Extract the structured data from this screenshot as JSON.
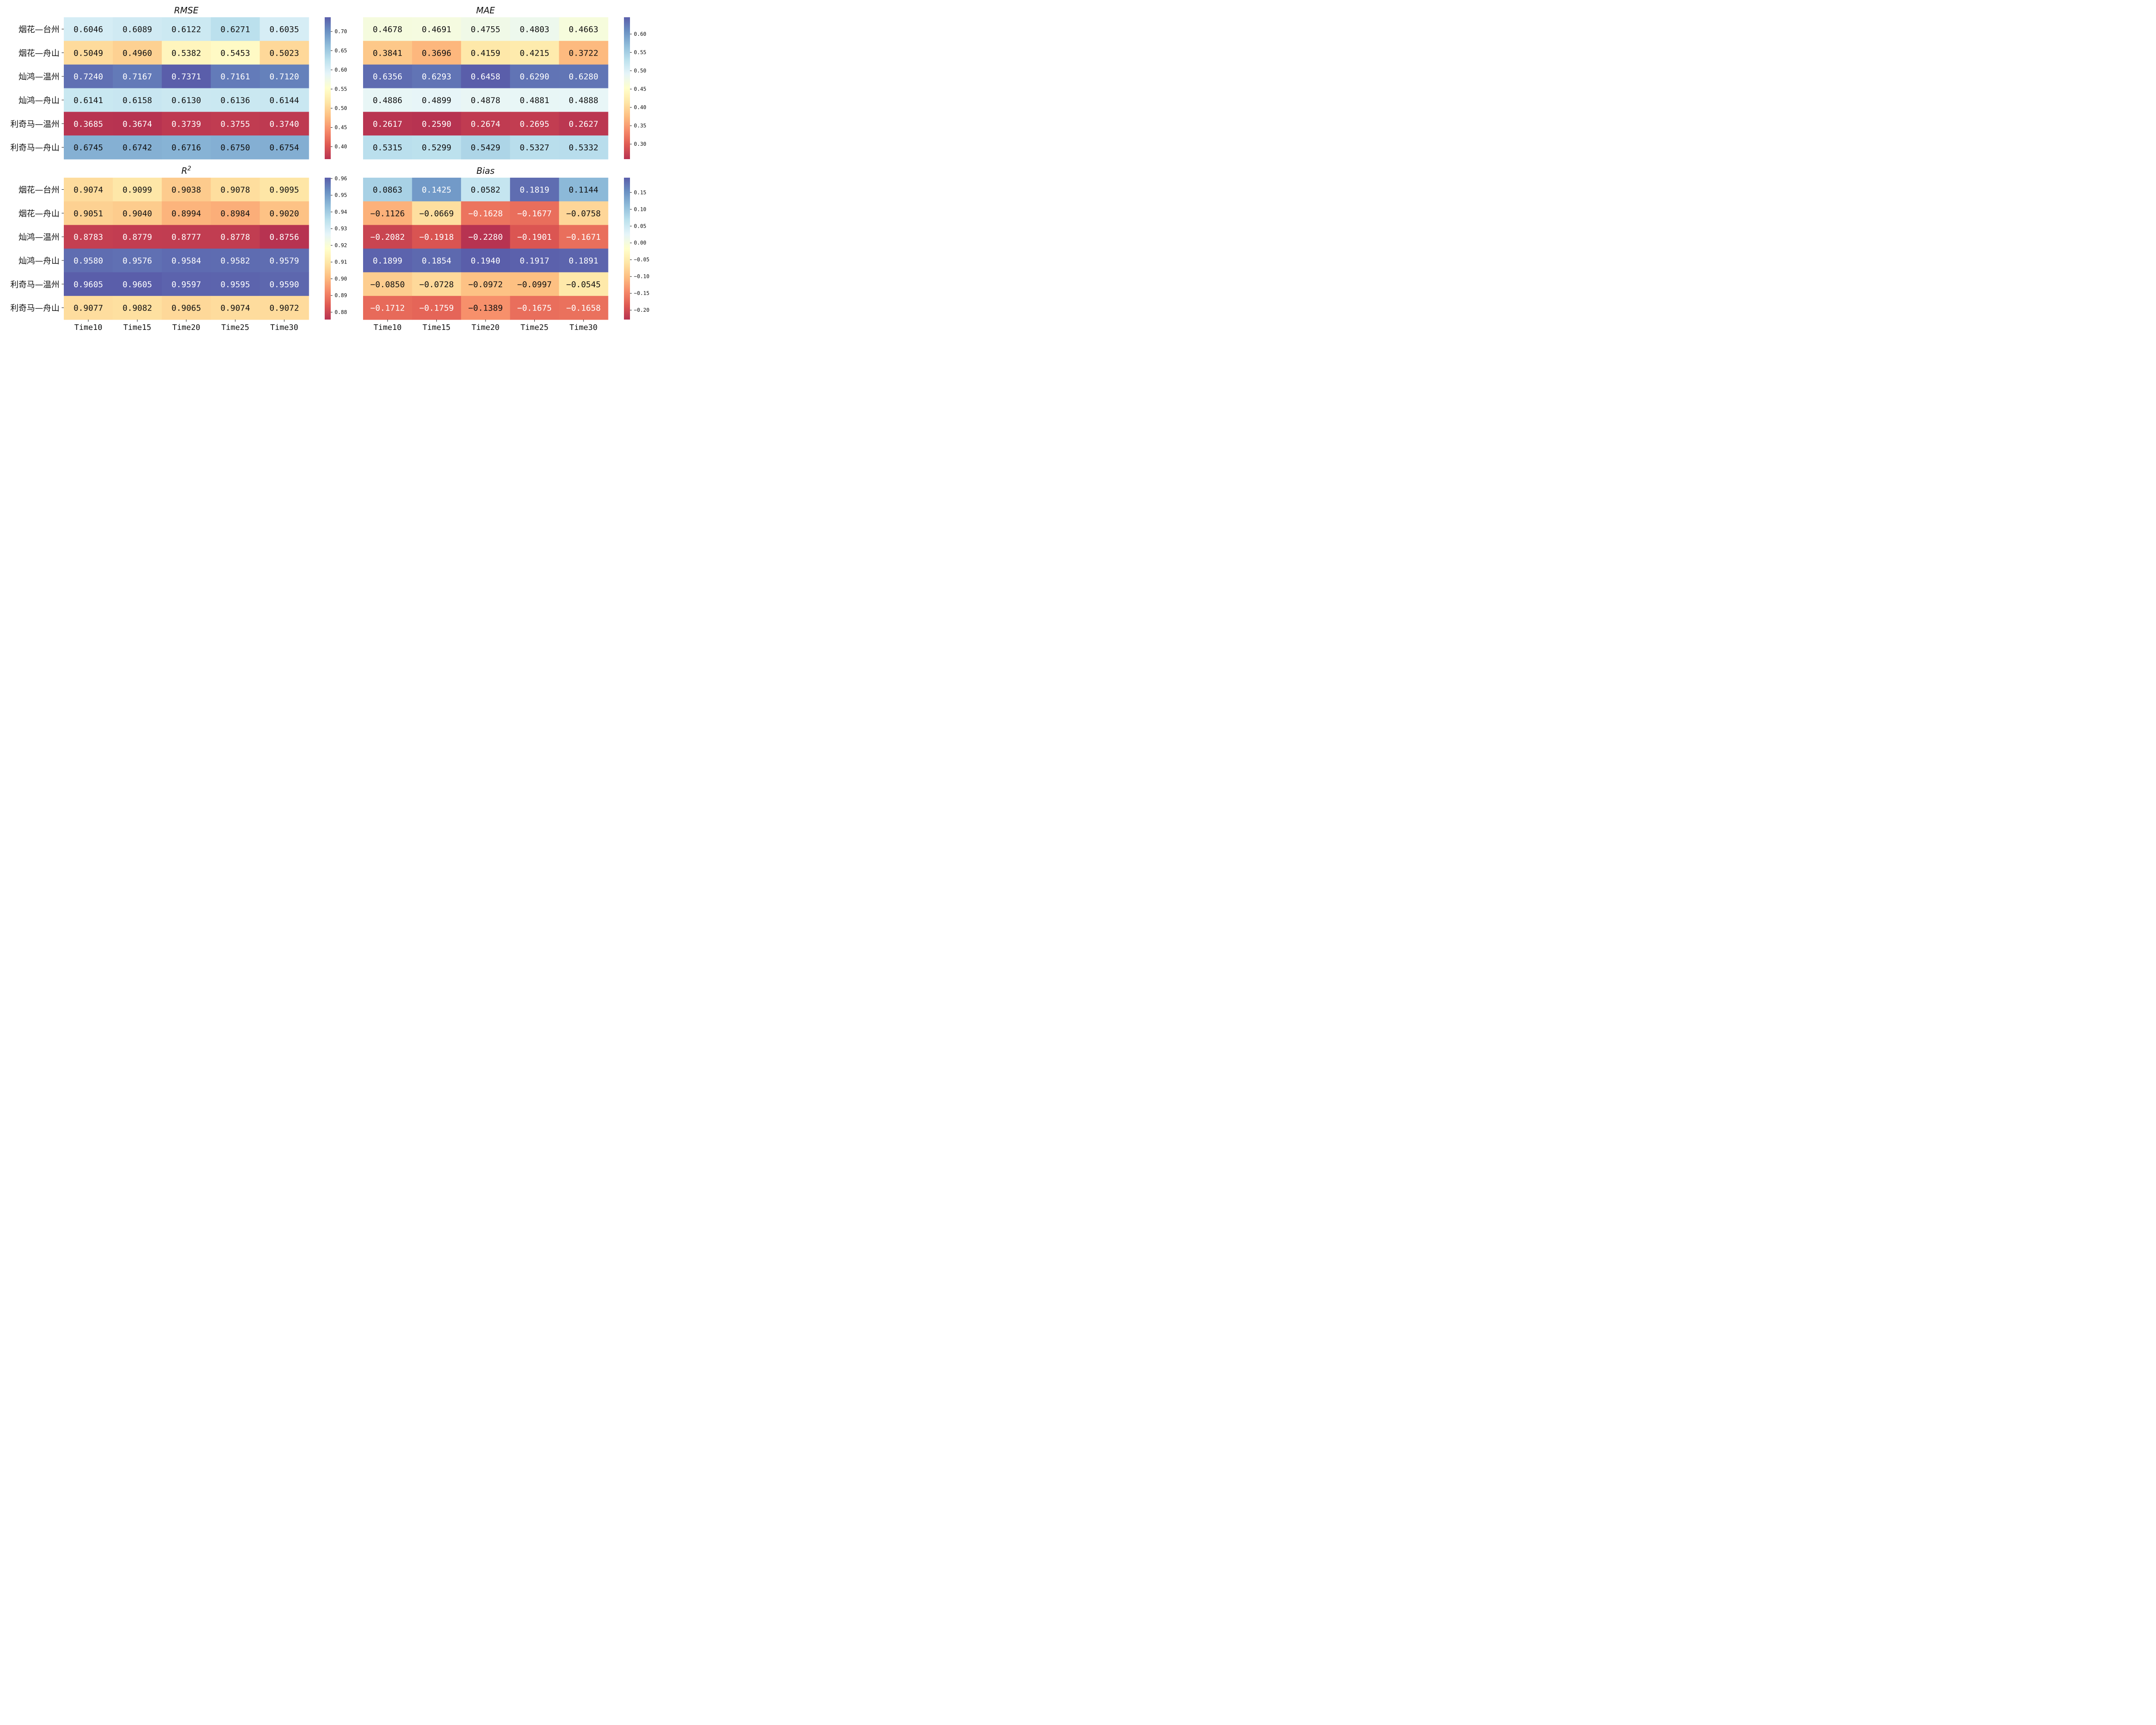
{
  "chart_data": [
    {
      "type": "heatmap",
      "title": "RMSE",
      "title_style": "italic",
      "rows": [
        "烟花—台州",
        "烟花—舟山",
        "灿鸿—温州",
        "灿鸿—舟山",
        "利奇马—温州",
        "利奇马—舟山"
      ],
      "columns": [
        "Time10",
        "Time15",
        "Time20",
        "Time25",
        "Time30"
      ],
      "values": [
        [
          0.6046,
          0.6089,
          0.6122,
          0.6271,
          0.6035
        ],
        [
          0.5049,
          0.496,
          0.5382,
          0.5453,
          0.5023
        ],
        [
          0.724,
          0.7167,
          0.7371,
          0.7161,
          0.712
        ],
        [
          0.6141,
          0.6158,
          0.613,
          0.6136,
          0.6144
        ],
        [
          0.3685,
          0.3674,
          0.3739,
          0.3755,
          0.374
        ],
        [
          0.6745,
          0.6742,
          0.6716,
          0.675,
          0.6754
        ]
      ],
      "labels": [
        [
          "0.6046",
          "0.6089",
          "0.6122",
          "0.6271",
          "0.6035"
        ],
        [
          "0.5049",
          "0.4960",
          "0.5382",
          "0.5453",
          "0.5023"
        ],
        [
          "0.7240",
          "0.7167",
          "0.7371",
          "0.7161",
          "0.7120"
        ],
        [
          "0.6141",
          "0.6158",
          "0.6130",
          "0.6136",
          "0.6144"
        ],
        [
          "0.3685",
          "0.3674",
          "0.3739",
          "0.3755",
          "0.3740"
        ],
        [
          "0.6745",
          "0.6742",
          "0.6716",
          "0.6750",
          "0.6754"
        ]
      ],
      "colormap": "RdYlBu",
      "colorbar_range": [
        0.3674,
        0.7371
      ],
      "colorbar_ticks": [
        "0.40",
        "0.45",
        "0.50",
        "0.55",
        "0.60",
        "0.65",
        "0.70"
      ],
      "show_column_labels": false
    },
    {
      "type": "heatmap",
      "title": "MAE",
      "title_style": "italic",
      "rows": [
        "烟花—台州",
        "烟花—舟山",
        "灿鸿—温州",
        "灿鸿—舟山",
        "利奇马—温州",
        "利奇马—舟山"
      ],
      "columns": [
        "Time10",
        "Time15",
        "Time20",
        "Time25",
        "Time30"
      ],
      "values": [
        [
          0.4678,
          0.4691,
          0.4755,
          0.4803,
          0.4663
        ],
        [
          0.3841,
          0.3696,
          0.4159,
          0.4215,
          0.3722
        ],
        [
          0.6356,
          0.6293,
          0.6458,
          0.629,
          0.628
        ],
        [
          0.4886,
          0.4899,
          0.4878,
          0.4881,
          0.4888
        ],
        [
          0.2617,
          0.259,
          0.2674,
          0.2695,
          0.2627
        ],
        [
          0.5315,
          0.5299,
          0.5429,
          0.5327,
          0.5332
        ]
      ],
      "labels": [
        [
          "0.4678",
          "0.4691",
          "0.4755",
          "0.4803",
          "0.4663"
        ],
        [
          "0.3841",
          "0.3696",
          "0.4159",
          "0.4215",
          "0.3722"
        ],
        [
          "0.6356",
          "0.6293",
          "0.6458",
          "0.6290",
          "0.6280"
        ],
        [
          "0.4886",
          "0.4899",
          "0.4878",
          "0.4881",
          "0.4888"
        ],
        [
          "0.2617",
          "0.2590",
          "0.2674",
          "0.2695",
          "0.2627"
        ],
        [
          "0.5315",
          "0.5299",
          "0.5429",
          "0.5327",
          "0.5332"
        ]
      ],
      "colormap": "RdYlBu",
      "colorbar_range": [
        0.259,
        0.6458
      ],
      "colorbar_ticks": [
        "0.30",
        "0.35",
        "0.40",
        "0.45",
        "0.50",
        "0.55",
        "0.60"
      ],
      "show_row_labels": false,
      "show_column_labels": false
    },
    {
      "type": "heatmap",
      "title": "R",
      "title_superscript": "2",
      "title_style": "italic",
      "rows": [
        "烟花—台州",
        "烟花—舟山",
        "灿鸿—温州",
        "灿鸿—舟山",
        "利奇马—温州",
        "利奇马—舟山"
      ],
      "columns": [
        "Time10",
        "Time15",
        "Time20",
        "Time25",
        "Time30"
      ],
      "values": [
        [
          0.9074,
          0.9099,
          0.9038,
          0.9078,
          0.9095
        ],
        [
          0.9051,
          0.904,
          0.8994,
          0.8984,
          0.902
        ],
        [
          0.8783,
          0.8779,
          0.8777,
          0.8778,
          0.8756
        ],
        [
          0.958,
          0.9576,
          0.9584,
          0.9582,
          0.9579
        ],
        [
          0.9605,
          0.9605,
          0.9597,
          0.9595,
          0.959
        ],
        [
          0.9077,
          0.9082,
          0.9065,
          0.9074,
          0.9072
        ]
      ],
      "labels": [
        [
          "0.9074",
          "0.9099",
          "0.9038",
          "0.9078",
          "0.9095"
        ],
        [
          "0.9051",
          "0.9040",
          "0.8994",
          "0.8984",
          "0.9020"
        ],
        [
          "0.8783",
          "0.8779",
          "0.8777",
          "0.8778",
          "0.8756"
        ],
        [
          "0.9580",
          "0.9576",
          "0.9584",
          "0.9582",
          "0.9579"
        ],
        [
          "0.9605",
          "0.9605",
          "0.9597",
          "0.9595",
          "0.9590"
        ],
        [
          "0.9077",
          "0.9082",
          "0.9065",
          "0.9074",
          "0.9072"
        ]
      ],
      "colormap": "RdYlBu",
      "colorbar_range": [
        0.8756,
        0.9605
      ],
      "colorbar_ticks": [
        "0.88",
        "0.89",
        "0.90",
        "0.91",
        "0.92",
        "0.93",
        "0.94",
        "0.95",
        "0.96"
      ]
    },
    {
      "type": "heatmap",
      "title": "Bias",
      "title_style": "italic",
      "rows": [
        "烟花—台州",
        "烟花—舟山",
        "灿鸿—温州",
        "灿鸿—舟山",
        "利奇马—温州",
        "利奇马—舟山"
      ],
      "columns": [
        "Time10",
        "Time15",
        "Time20",
        "Time25",
        "Time30"
      ],
      "values": [
        [
          0.0863,
          0.1425,
          0.0582,
          0.1819,
          0.1144
        ],
        [
          -0.1126,
          -0.0669,
          -0.1628,
          -0.1677,
          -0.0758
        ],
        [
          -0.2082,
          -0.1918,
          -0.228,
          -0.1901,
          -0.1671
        ],
        [
          0.1899,
          0.1854,
          0.194,
          0.1917,
          0.1891
        ],
        [
          -0.085,
          -0.0728,
          -0.0972,
          -0.0997,
          -0.0545
        ],
        [
          -0.1712,
          -0.1759,
          -0.1389,
          -0.1675,
          -0.1658
        ]
      ],
      "labels": [
        [
          "0.0863",
          "0.1425",
          "0.0582",
          "0.1819",
          "0.1144"
        ],
        [
          "−0.1126",
          "−0.0669",
          "−0.1628",
          "−0.1677",
          "−0.0758"
        ],
        [
          "−0.2082",
          "−0.1918",
          "−0.2280",
          "−0.1901",
          "−0.1671"
        ],
        [
          "0.1899",
          "0.1854",
          "0.1940",
          "0.1917",
          "0.1891"
        ],
        [
          "−0.0850",
          "−0.0728",
          "−0.0972",
          "−0.0997",
          "−0.0545"
        ],
        [
          "−0.1712",
          "−0.1759",
          "−0.1389",
          "−0.1675",
          "−0.1658"
        ]
      ],
      "colormap": "RdYlBu",
      "colorbar_range": [
        -0.228,
        0.194
      ],
      "colorbar_ticks": [
        "−0.20",
        "−0.15",
        "−0.10",
        "−0.05",
        "0.00",
        "0.05",
        "0.10",
        "0.15"
      ],
      "show_row_labels": false
    }
  ]
}
